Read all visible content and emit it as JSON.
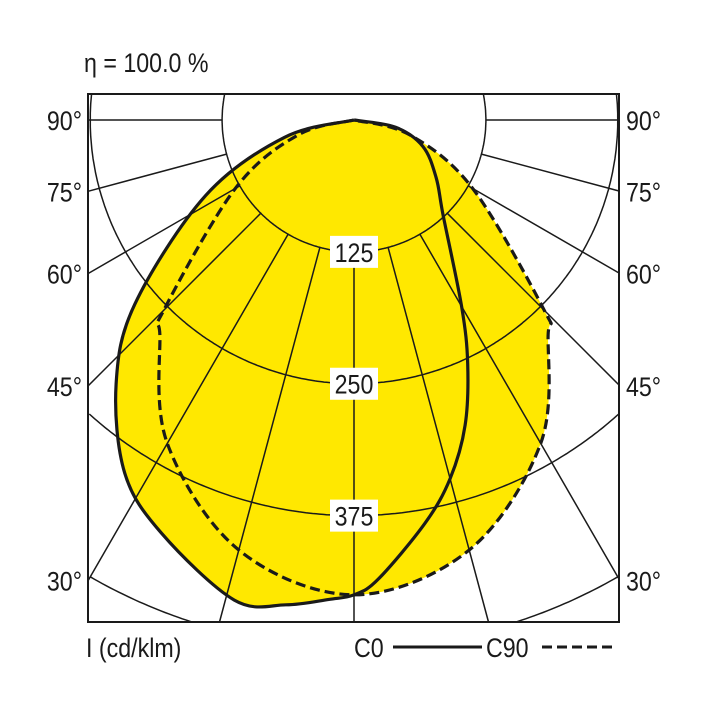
{
  "chart_data": {
    "type": "polar",
    "title": "η = 100.0 %",
    "unit_label": "I (cd/klm)",
    "radial_ticks": [
      125,
      250,
      375
    ],
    "radial_tick_labels": [
      "125",
      "250",
      "375"
    ],
    "angle_labels": [
      "90°",
      "75°",
      "60°",
      "45°",
      "30°"
    ],
    "angle_label_values": [
      90,
      75,
      60,
      45,
      30
    ],
    "fill_color": "#FFE800",
    "legend": [
      {
        "name": "C0",
        "style": "solid"
      },
      {
        "name": "C90",
        "style": "dashed"
      }
    ],
    "series": [
      {
        "name": "C0",
        "style": "solid",
        "angles": [
          -90,
          -76,
          -63,
          -50,
          -42,
          -33,
          -25,
          -14,
          -8,
          -3,
          0,
          3,
          10,
          15,
          20,
          25,
          30,
          43,
          55,
          69,
          80,
          90
        ],
        "values": [
          0,
          68,
          158,
          271,
          337,
          399,
          432,
          469,
          464,
          455,
          450,
          436,
          388,
          352,
          308,
          255,
          204,
          124,
          95,
          70,
          40,
          0
        ]
      },
      {
        "name": "C90",
        "style": "dashed",
        "angles": [
          -90,
          -75,
          -60,
          -45,
          -42,
          -30,
          -15,
          0,
          15,
          30,
          42,
          45,
          60,
          75,
          90
        ],
        "values": [
          0,
          55,
          130,
          255,
          275,
          354,
          422,
          450,
          422,
          354,
          275,
          255,
          130,
          55,
          0
        ]
      }
    ]
  }
}
